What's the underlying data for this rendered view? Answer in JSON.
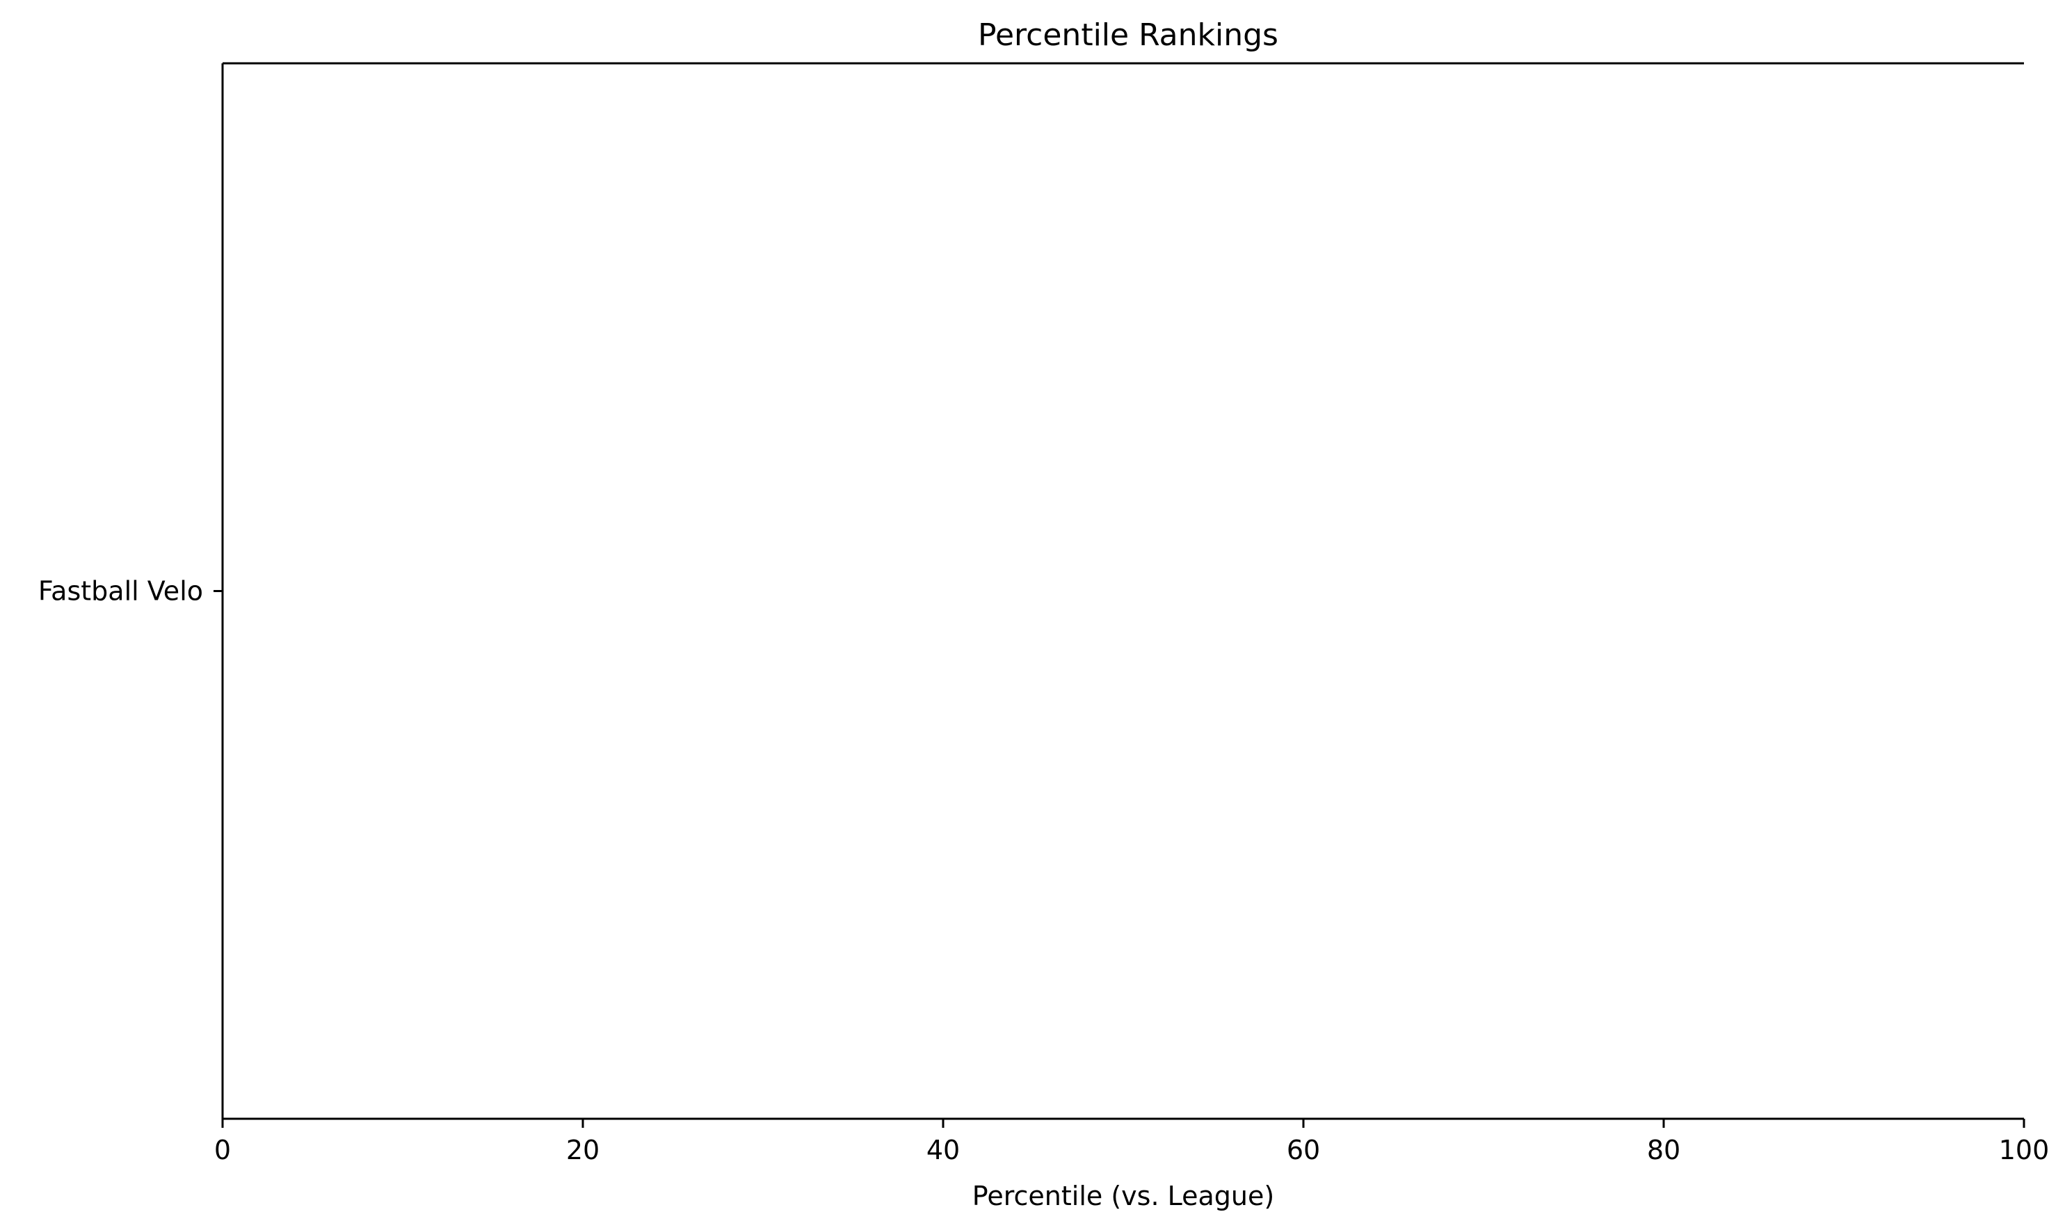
{
  "chart_data": {
    "type": "bar",
    "orientation": "horizontal",
    "title": "Percentile Rankings",
    "xlabel": "Percentile (vs. League)",
    "ylabel": "",
    "xlim": [
      0,
      100
    ],
    "x_ticks": [
      0,
      20,
      40,
      60,
      80,
      100
    ],
    "categories": [
      "Fastball Velo"
    ],
    "values": [
      0
    ],
    "grid": false,
    "legend": "none"
  }
}
